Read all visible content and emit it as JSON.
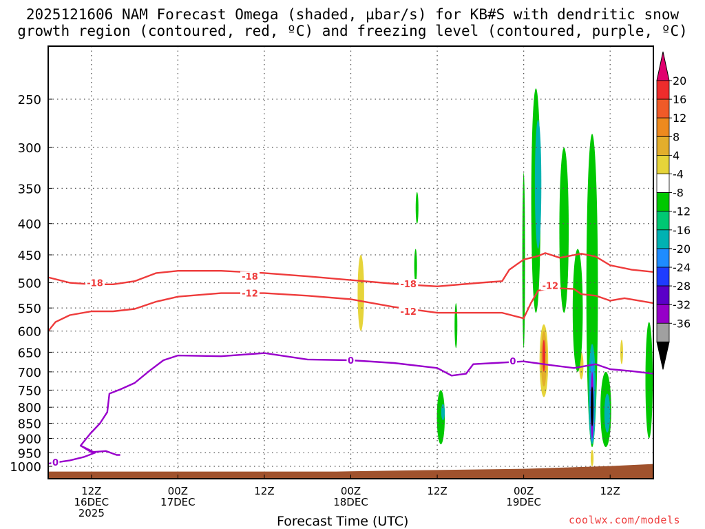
{
  "header": {
    "title_line1": "2025121606 NAM Forecast Omega (shaded, µbar/s) for KB#S with dendritic snow",
    "title_line2": "growth region (contoured, red, ºC) and freezing level (contoured, purple, ºC)"
  },
  "footer": {
    "xlabel": "Forecast Time (UTC)",
    "credit": "coolwx.com/models"
  },
  "chart_data": {
    "type": "heatmap",
    "title": "2025121606 NAM Forecast Omega (shaded, µbar/s) for KB#S with dendritic snow growth region (contoured, red, ºC) and freezing level (contoured, purple, ºC)",
    "xlabel": "Forecast Time (UTC)",
    "ylabel": "",
    "y_axis": {
      "ticks": [
        250,
        300,
        350,
        400,
        450,
        500,
        550,
        600,
        650,
        700,
        750,
        800,
        850,
        900,
        950,
        1000
      ],
      "inverted": true,
      "scale": "log-pressure",
      "range": [
        200,
        1020
      ]
    },
    "x_axis": {
      "range_hours": [
        6,
        90
      ],
      "ticks": [
        {
          "h": 12,
          "lines": [
            "12Z",
            "16DEC",
            "2025"
          ]
        },
        {
          "h": 24,
          "lines": [
            "00Z",
            "17DEC"
          ]
        },
        {
          "h": 36,
          "lines": [
            "12Z"
          ]
        },
        {
          "h": 48,
          "lines": [
            "00Z",
            "18DEC"
          ]
        },
        {
          "h": 60,
          "lines": [
            "12Z"
          ]
        },
        {
          "h": 72,
          "lines": [
            "00Z",
            "19DEC"
          ]
        },
        {
          "h": 84,
          "lines": [
            "12Z"
          ]
        }
      ]
    },
    "grid": true,
    "colorbar": {
      "labels": [
        "20",
        "16",
        "12",
        "8",
        "4",
        "-4",
        "-8",
        "-12",
        "-16",
        "-20",
        "-24",
        "-28",
        "-32",
        "-36"
      ],
      "bins": [
        {
          "color": "#e0006e"
        },
        {
          "color": "#ee2c2c"
        },
        {
          "color": "#f05a28"
        },
        {
          "color": "#ee8a1e"
        },
        {
          "color": "#e3ae2c"
        },
        {
          "color": "#e6d43a"
        },
        {
          "color": "#ffffff"
        },
        {
          "color": "#00c800"
        },
        {
          "color": "#00c873"
        },
        {
          "color": "#00b2b2"
        },
        {
          "color": "#1e8cff"
        },
        {
          "color": "#1e3cff"
        },
        {
          "color": "#5a00c8"
        },
        {
          "color": "#9600c8"
        },
        {
          "color": "#a0a0a0"
        },
        {
          "color": "#000000"
        }
      ]
    },
    "contours": [
      {
        "label": "-18",
        "color": "#ee3b3b",
        "points": [
          [
            6,
            490
          ],
          [
            9,
            500
          ],
          [
            12,
            503
          ],
          [
            15,
            503
          ],
          [
            18,
            497
          ],
          [
            21,
            482
          ],
          [
            24,
            478
          ],
          [
            30,
            478
          ],
          [
            36,
            482
          ],
          [
            42,
            488
          ],
          [
            48,
            495
          ],
          [
            54,
            502
          ],
          [
            60,
            507
          ],
          [
            66,
            500
          ],
          [
            69,
            497
          ],
          [
            70,
            476
          ],
          [
            72,
            458
          ],
          [
            74,
            452
          ],
          [
            75,
            447
          ],
          [
            77,
            455
          ],
          [
            80,
            448
          ],
          [
            82,
            453
          ],
          [
            84,
            468
          ],
          [
            87,
            476
          ],
          [
            90,
            480
          ]
        ]
      },
      {
        "label": "-12",
        "color": "#ee3b3b",
        "points": [
          [
            6,
            600
          ],
          [
            7,
            580
          ],
          [
            9,
            565
          ],
          [
            12,
            557
          ],
          [
            15,
            557
          ],
          [
            18,
            552
          ],
          [
            21,
            537
          ],
          [
            24,
            527
          ],
          [
            30,
            520
          ],
          [
            36,
            520
          ],
          [
            42,
            525
          ],
          [
            48,
            532
          ],
          [
            54,
            548
          ],
          [
            60,
            560
          ],
          [
            66,
            560
          ],
          [
            69,
            560
          ],
          [
            72,
            572
          ],
          [
            73,
            540
          ],
          [
            74,
            515
          ],
          [
            76,
            510
          ],
          [
            79,
            512
          ],
          [
            80,
            522
          ],
          [
            82,
            525
          ],
          [
            84,
            535
          ],
          [
            86,
            530
          ],
          [
            90,
            540
          ]
        ]
      },
      {
        "label": "0",
        "color": "#9900cc",
        "points": [
          [
            6,
            990
          ],
          [
            9,
            978
          ],
          [
            11,
            965
          ],
          [
            12.5,
            950
          ],
          [
            10.5,
            925
          ],
          [
            11.8,
            885
          ],
          [
            13.2,
            850
          ],
          [
            14.2,
            815
          ],
          [
            14.5,
            760
          ],
          [
            16,
            748
          ],
          [
            18,
            730
          ],
          [
            20,
            698
          ],
          [
            22,
            670
          ],
          [
            24,
            658
          ],
          [
            30,
            660
          ],
          [
            36,
            652
          ],
          [
            42,
            668
          ],
          [
            48,
            670
          ],
          [
            54,
            677
          ],
          [
            60,
            690
          ],
          [
            62,
            710
          ],
          [
            64,
            705
          ],
          [
            65,
            680
          ],
          [
            68,
            677
          ],
          [
            72,
            673
          ],
          [
            76,
            683
          ],
          [
            79,
            690
          ],
          [
            82,
            680
          ],
          [
            84,
            693
          ],
          [
            87,
            698
          ],
          [
            90,
            705
          ]
        ]
      },
      {
        "label": "0",
        "color": "#9900cc",
        "points": [
          [
            10.5,
            925
          ],
          [
            12,
            948
          ],
          [
            14,
            944
          ],
          [
            15.5,
            958
          ],
          [
            16,
            958
          ]
        ]
      }
    ],
    "contour_label_positions": [
      {
        "text": "-18",
        "h": 12.5,
        "p": 500
      },
      {
        "text": "-18",
        "h": 34,
        "p": 488
      },
      {
        "text": "-18",
        "h": 56,
        "p": 502
      },
      {
        "text": "-12",
        "h": 34,
        "p": 520
      },
      {
        "text": "-12",
        "h": 56,
        "p": 557
      },
      {
        "text": "0",
        "h": 48,
        "p": 670
      },
      {
        "text": "0",
        "h": 70.5,
        "p": 672
      },
      {
        "text": "0",
        "h": 7,
        "p": 985
      },
      {
        "text": "-12",
        "h": 75.7,
        "p": 505
      }
    ],
    "omega_regions": [
      {
        "bin": "4 to 8",
        "color": "#e6d43a",
        "h": 49.4,
        "p_top": 450,
        "p_bottom": 600,
        "width_h": 0.9
      },
      {
        "bin": "4 to 8",
        "color": "#e6d43a",
        "h": 74.8,
        "p_top": 585,
        "p_bottom": 770,
        "width_h": 1.2
      },
      {
        "bin": "4 to 8",
        "color": "#e6d43a",
        "h": 80,
        "p_top": 650,
        "p_bottom": 720,
        "width_h": 0.6
      },
      {
        "bin": "4 to 8",
        "color": "#e6d43a",
        "h": 85.6,
        "p_top": 620,
        "p_bottom": 680,
        "width_h": 0.15
      },
      {
        "bin": "4 to 8",
        "color": "#e6d43a",
        "h": 81.5,
        "p_top": 940,
        "p_bottom": 1000,
        "width_h": 0.4
      },
      {
        "bin": "8 to 12",
        "color": "#e3ae2c",
        "h": 74.8,
        "p_top": 600,
        "p_bottom": 740,
        "width_h": 0.8
      },
      {
        "bin": "12 to 20",
        "color": "#ee2c2c",
        "h": 74.8,
        "p_top": 620,
        "p_bottom": 700,
        "width_h": 0.4
      },
      {
        "bin": "-4 to -8",
        "color": "#00c800",
        "h": 73.7,
        "p_top": 240,
        "p_bottom": 560,
        "width_h": 1.3
      },
      {
        "bin": "-4 to -8",
        "color": "#00c800",
        "h": 77.6,
        "p_top": 300,
        "p_bottom": 560,
        "width_h": 1.3
      },
      {
        "bin": "-4 to -8",
        "color": "#00c800",
        "h": 81.5,
        "p_top": 285,
        "p_bottom": 930,
        "width_h": 1.6
      },
      {
        "bin": "-4 to -8",
        "color": "#00c800",
        "h": 79.5,
        "p_top": 440,
        "p_bottom": 700,
        "width_h": 1.4
      },
      {
        "bin": "-4 to -8",
        "color": "#00c800",
        "h": 60.5,
        "p_top": 750,
        "p_bottom": 920,
        "width_h": 1.1
      },
      {
        "bin": "-4 to -8",
        "color": "#00c800",
        "h": 62.6,
        "p_top": 540,
        "p_bottom": 640,
        "width_h": 0.3
      },
      {
        "bin": "-4 to -8",
        "color": "#00c800",
        "h": 57.2,
        "p_top": 355,
        "p_bottom": 400,
        "width_h": 0.25
      },
      {
        "bin": "-4 to -8",
        "color": "#00c800",
        "h": 57.0,
        "p_top": 440,
        "p_bottom": 500,
        "width_h": 0.3
      },
      {
        "bin": "-4 to -8",
        "color": "#00c800",
        "h": 72.0,
        "p_top": 330,
        "p_bottom": 640,
        "width_h": 0.3
      },
      {
        "bin": "-4 to -8",
        "color": "#00c800",
        "h": 83.4,
        "p_top": 700,
        "p_bottom": 930,
        "width_h": 1.5
      },
      {
        "bin": "-4 to -8",
        "color": "#00c800",
        "h": 89.4,
        "p_top": 580,
        "p_bottom": 900,
        "width_h": 1.0
      },
      {
        "bin": "-8 to -16",
        "color": "#00b2b2",
        "h": 74.0,
        "p_top": 270,
        "p_bottom": 440,
        "width_h": 0.9
      },
      {
        "bin": "-8 to -16",
        "color": "#00b2b2",
        "h": 81.5,
        "p_top": 630,
        "p_bottom": 920,
        "width_h": 1.0
      },
      {
        "bin": "-8 to -16",
        "color": "#00b2b2",
        "h": 83.6,
        "p_top": 760,
        "p_bottom": 880,
        "width_h": 0.8
      },
      {
        "bin": "-8 to -16",
        "color": "#00b2b2",
        "h": 60.8,
        "p_top": 790,
        "p_bottom": 840,
        "width_h": 0.5
      },
      {
        "bin": "-16 to -24",
        "color": "#1e8cff",
        "h": 81.5,
        "p_top": 670,
        "p_bottom": 910,
        "width_h": 0.6
      },
      {
        "bin": "-24 to -32",
        "color": "#9600c8",
        "h": 81.5,
        "p_top": 700,
        "p_bottom": 900,
        "width_h": 0.35
      },
      {
        "bin": "< -36",
        "color": "#000000",
        "h": 81.5,
        "p_top": 740,
        "p_bottom": 860,
        "width_h": 0.15
      }
    ],
    "terrain": {
      "color": "#a0522d"
    }
  }
}
